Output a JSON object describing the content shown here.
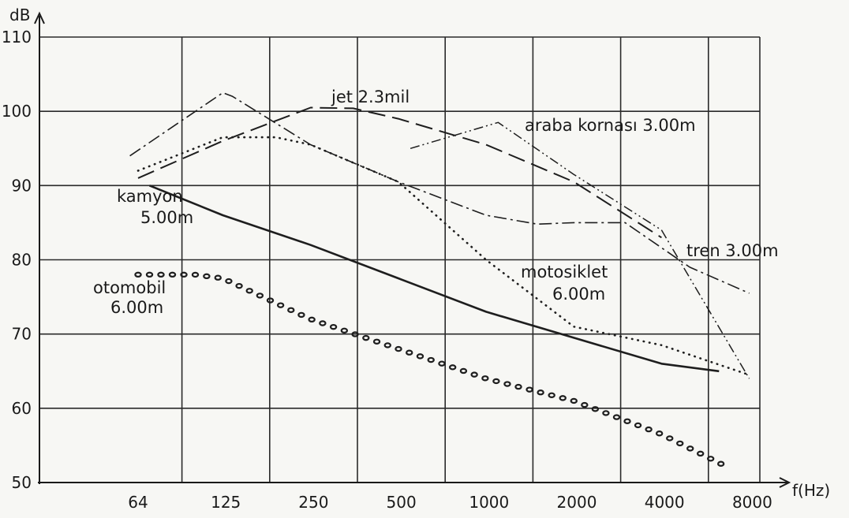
{
  "chart_data": {
    "type": "line",
    "title": "",
    "xlabel": "f(Hz)",
    "ylabel": "dB",
    "x_scale": "log2",
    "x_ticks": [
      "64",
      "125",
      "250",
      "500",
      "1000",
      "2000",
      "4000",
      "8000"
    ],
    "y_ticks": [
      "110",
      "100",
      "90",
      "80",
      "70",
      "60",
      "50"
    ],
    "ylim": [
      50,
      110
    ],
    "grid": true,
    "series": [
      {
        "name": "jet 2.3 mil",
        "label_lines": [
          "jet 2.3mil"
        ],
        "style": "long-dash",
        "x": [
          64,
          125,
          250,
          350,
          500,
          1000,
          2000,
          4000
        ],
        "y": [
          91,
          96,
          100.5,
          100.4,
          99,
          95.5,
          90.5,
          83
        ]
      },
      {
        "name": "araba kornası 3.00 m",
        "label_lines": [
          "araba kornası 3.00m"
        ],
        "style": "dash-dot-dot",
        "x": [
          550,
          1100,
          2000,
          4000,
          8000
        ],
        "y": [
          95,
          98.5,
          91.5,
          84,
          64
        ]
      },
      {
        "name": "tren 3.00 m",
        "label_lines": [
          "tren 3.00m"
        ],
        "style": "dash-dot",
        "x": [
          60,
          125,
          135,
          250,
          500,
          1000,
          1500,
          2000,
          3000,
          5000,
          8000
        ],
        "y": [
          94,
          102.5,
          102,
          95.5,
          90.5,
          86,
          84.8,
          85,
          85,
          79,
          75.5
        ]
      },
      {
        "name": "motosiklet 6.00 m",
        "label_lines": [
          "motosiklet",
          "6.00m"
        ],
        "style": "dotted",
        "x": [
          64,
          125,
          190,
          250,
          500,
          1000,
          2000,
          4000,
          8000
        ],
        "y": [
          92,
          96.5,
          96.5,
          95.5,
          90.5,
          80,
          71,
          68.5,
          64.5
        ]
      },
      {
        "name": "kamyon 5.00 m",
        "label_lines": [
          "kamyon",
          "5.00m"
        ],
        "style": "solid",
        "x": [
          70,
          125,
          250,
          500,
          1000,
          2000,
          4000,
          6300
        ],
        "y": [
          90,
          86,
          82,
          77.5,
          73,
          69.5,
          66,
          65
        ]
      },
      {
        "name": "otomobil 6.00 m",
        "label_lines": [
          "otomobil",
          "6.00m"
        ],
        "style": "circles",
        "x": [
          64,
          100,
          125,
          250,
          500,
          1000,
          2000,
          4000,
          6800
        ],
        "y": [
          78,
          78,
          77.5,
          72,
          68,
          64,
          61,
          56.5,
          52
        ]
      }
    ]
  }
}
